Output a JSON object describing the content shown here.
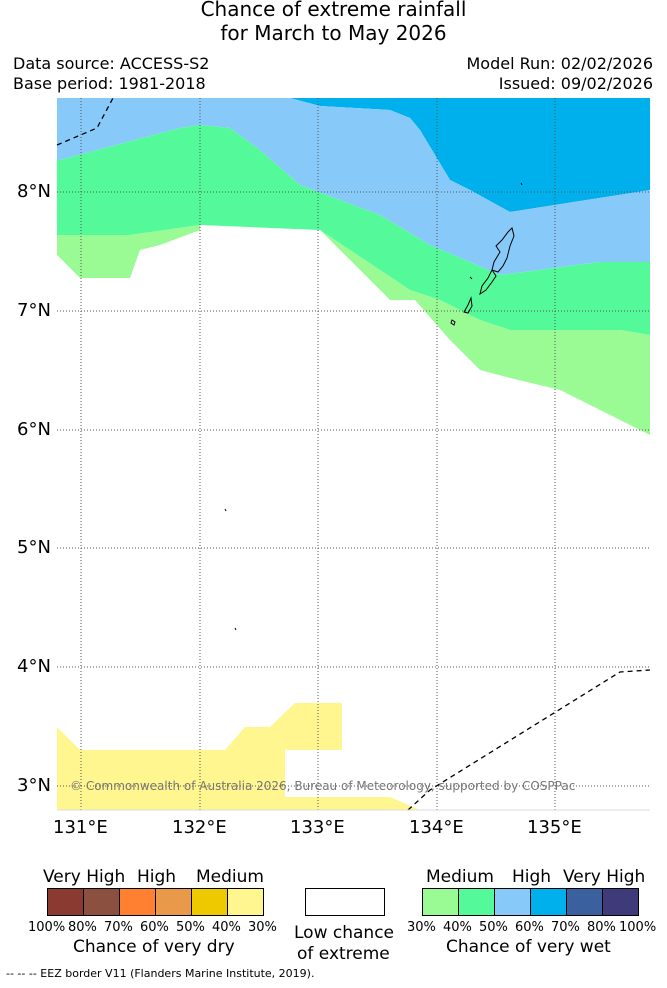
{
  "title": {
    "line1": "Chance of extreme rainfall",
    "line2": "for March to May 2026"
  },
  "meta": {
    "data_source": "Data source: ACCESS-S2",
    "base_period": "Base period: 1981-2018",
    "model_run": "Model Run: 02/02/2026",
    "issued": "Issued: 09/02/2026"
  },
  "map": {
    "lat_ticks": [
      "8°N",
      "7°N",
      "6°N",
      "5°N",
      "4°N",
      "3°N"
    ],
    "lon_ticks": [
      "131°E",
      "132°E",
      "133°E",
      "134°E",
      "135°E"
    ],
    "copyright": "© Commonwealth of Australia 2026, Bureau of Meteorology, supported by COSPPac"
  },
  "legend": {
    "dry": {
      "categories": [
        "Very High",
        "High",
        "Medium"
      ],
      "percents": [
        "100%",
        "80%",
        "70%",
        "60%",
        "50%",
        "40%",
        "30%"
      ],
      "label": "Chance of very dry",
      "colors": [
        "#8b3a32",
        "#8b5040",
        "#ff8030",
        "#e89a4a",
        "#eec900",
        "#fff68f"
      ]
    },
    "low": {
      "line1": "Low chance",
      "line2": "of extreme"
    },
    "wet": {
      "categories": [
        "Medium",
        "High",
        "Very High"
      ],
      "percents": [
        "30%",
        "40%",
        "50%",
        "60%",
        "70%",
        "80%",
        "100%"
      ],
      "label": "Chance of very wet",
      "colors": [
        "#9afa94",
        "#54fa9a",
        "#87cafa",
        "#00b0ec",
        "#3a619e",
        "#3f3a7a"
      ]
    }
  },
  "footer": {
    "eez": "--  --  -- EEZ border V11 (Flanders Marine Institute, 2019)."
  }
}
